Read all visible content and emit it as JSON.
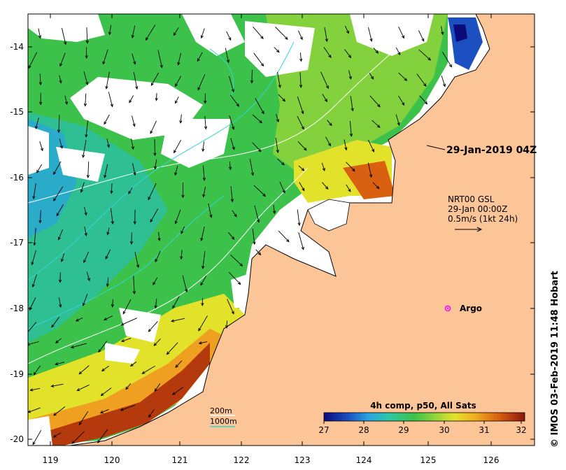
{
  "map": {
    "date_label": "29-Jan-2019 04Z",
    "current_info": {
      "line1": "NRT00 GSL",
      "line2": "29-Jan 00:00Z",
      "line3": "0.5m/s (1kt 24h)"
    },
    "argo_label": "Argo",
    "contour_legend": {
      "line1": "200m",
      "line2": "1000m"
    },
    "colorbar": {
      "title": "4h comp, p50, All Sats",
      "ticks": [
        "27",
        "28",
        "29",
        "30",
        "31",
        "32"
      ],
      "min": 27,
      "max": 32
    },
    "credit": "© IMOS 03-Feb-2019 11:48 Hobart",
    "axes": {
      "lon_ticks": [
        "119",
        "120",
        "121",
        "122",
        "123",
        "124",
        "125",
        "126"
      ],
      "lat_ticks": [
        "-14",
        "-15",
        "-16",
        "-17",
        "-18",
        "-19",
        "-20"
      ]
    },
    "colors": {
      "land": "#fcc597",
      "sst_cool": "#1f90d0",
      "sst_mid": "#3cc24a",
      "sst_warm": "#e9c21a",
      "sst_hot": "#a52a0c",
      "contour_200": "#ffffff",
      "contour_1000": "#33d6d6",
      "argo": "#ff00ff"
    }
  }
}
